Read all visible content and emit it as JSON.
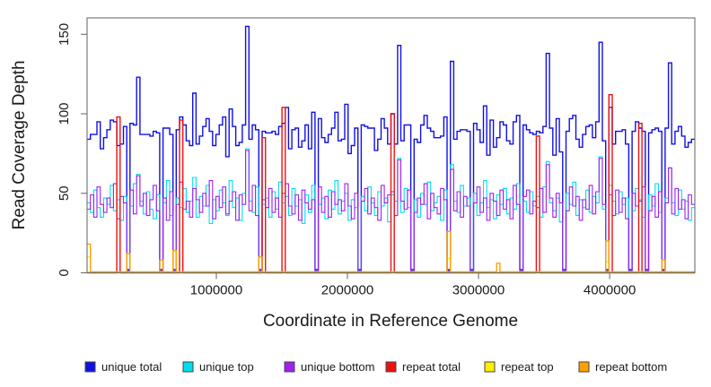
{
  "chart_data": {
    "type": "line",
    "subtype": "step-coverage-plot",
    "title": "",
    "xlabel": "Coordinate in Reference Genome",
    "ylabel": "Read Coverage Depth",
    "x_range": [
      14000,
      4650000
    ],
    "y_range": [
      0,
      160
    ],
    "x_ticks": [
      1000000,
      2000000,
      3000000,
      4000000
    ],
    "y_ticks": [
      0,
      50,
      100,
      150
    ],
    "grid": false,
    "legend_position": "bottom",
    "axis_color": "#6e6e6e",
    "text_color": "#1a1a1a",
    "bin_count": 184,
    "series": [
      {
        "name": "unique total",
        "color": "#1010E6",
        "line_width": 1.4,
        "derive": "sum",
        "of": [
          "unique top",
          "unique bottom"
        ]
      },
      {
        "name": "unique top",
        "color": "#00DDEE",
        "line_width": 1.1,
        "values": [
          44,
          38,
          52,
          41,
          35,
          47,
          43,
          55,
          39,
          46,
          33,
          48,
          1,
          42,
          56,
          62,
          45,
          37,
          51,
          40,
          34,
          49,
          1,
          44,
          58,
          36,
          1,
          47,
          41,
          53,
          38,
          45,
          60,
          35,
          48,
          42,
          55,
          31,
          46,
          39,
          52,
          44,
          36,
          58,
          41,
          47,
          33,
          50,
          78,
          45,
          38,
          54,
          1,
          43,
          47,
          35,
          51,
          40,
          57,
          44,
          48,
          36,
          53,
          42,
          46,
          31,
          49,
          38,
          55,
          1,
          43,
          47,
          34,
          52,
          40,
          58,
          37,
          45,
          50,
          33,
          46,
          41,
          1,
          48,
          39,
          54,
          44,
          36,
          51,
          42,
          47,
          32,
          49,
          45,
          72,
          38,
          53,
          41,
          1,
          46,
          35,
          50,
          43,
          57,
          39,
          44,
          48,
          33,
          52,
          1,
          68,
          45,
          38,
          55,
          42,
          47,
          1,
          50,
          36,
          44,
          58,
          41,
          46,
          34,
          49,
          43,
          53,
          37,
          47,
          40,
          56,
          1,
          45,
          38,
          51,
          42,
          48,
          35,
          54,
          70,
          44,
          39,
          47,
          32,
          1,
          50,
          43,
          57,
          36,
          46,
          41,
          52,
          38,
          48,
          44,
          73,
          40,
          1,
          55,
          45,
          37,
          51,
          43,
          47,
          1,
          39,
          53,
          46,
          35,
          1,
          49,
          42,
          56,
          38,
          1,
          47,
          66,
          44,
          36,
          52,
          40,
          45,
          33,
          41
        ]
      },
      {
        "name": "unique bottom",
        "color": "#A020F0",
        "line_width": 1.1,
        "values": [
          40,
          49,
          35,
          54,
          43,
          38,
          47,
          41,
          56,
          34,
          48,
          44,
          1,
          52,
          37,
          61,
          42,
          50,
          36,
          46,
          55,
          39,
          1,
          47,
          33,
          51,
          1,
          43,
          57,
          40,
          45,
          35,
          53,
          46,
          38,
          50,
          42,
          58,
          34,
          48,
          41,
          54,
          37,
          45,
          51,
          33,
          49,
          43,
          77,
          39,
          55,
          36,
          1,
          46,
          41,
          53,
          38,
          47,
          35,
          50,
          56,
          42,
          37,
          49,
          33,
          52,
          44,
          40,
          46,
          1,
          54,
          38,
          48,
          35,
          51,
          43,
          46,
          39,
          56,
          42,
          34,
          50,
          1,
          45,
          53,
          37,
          47,
          41,
          33,
          55,
          44,
          49,
          51,
          36,
          71,
          45,
          40,
          52,
          1,
          38,
          47,
          43,
          56,
          34,
          50,
          41,
          37,
          53,
          46,
          1,
          65,
          39,
          51,
          35,
          48,
          42,
          1,
          44,
          54,
          38,
          47,
          33,
          50,
          45,
          36,
          52,
          40,
          46,
          34,
          55,
          43,
          1,
          48,
          52,
          37,
          45,
          41,
          53,
          38,
          68,
          47,
          35,
          50,
          44,
          1,
          39,
          54,
          42,
          48,
          33,
          46,
          40,
          55,
          37,
          51,
          72,
          43,
          1,
          49,
          36,
          52,
          38,
          47,
          34,
          1,
          50,
          42,
          45,
          54,
          1,
          39,
          48,
          35,
          51,
          1,
          44,
          66,
          37,
          53,
          40,
          46,
          34,
          49,
          43
        ]
      },
      {
        "name": "repeat total",
        "color": "#EE1111",
        "line_width": 1.4,
        "baseline": 0,
        "spikes": [
          [
            9,
            98
          ],
          [
            28,
            96
          ],
          [
            53,
            85
          ],
          [
            59,
            104
          ],
          [
            92,
            100
          ],
          [
            136,
            86
          ],
          [
            158,
            112
          ],
          [
            167,
            94
          ]
        ]
      },
      {
        "name": "repeat top",
        "color": "#FFEE00",
        "line_width": 1.2,
        "baseline": 0.4,
        "spikes": [
          [
            0,
            10
          ],
          [
            109,
            9
          ],
          [
            157,
            7
          ]
        ]
      },
      {
        "name": "repeat bottom",
        "color": "#FFA000",
        "line_width": 1.4,
        "baseline": 0.6,
        "spikes": [
          [
            0,
            18
          ],
          [
            12,
            12
          ],
          [
            22,
            8
          ],
          [
            26,
            14
          ],
          [
            52,
            10
          ],
          [
            109,
            26
          ],
          [
            124,
            6
          ],
          [
            157,
            20
          ],
          [
            174,
            8
          ]
        ]
      }
    ]
  }
}
